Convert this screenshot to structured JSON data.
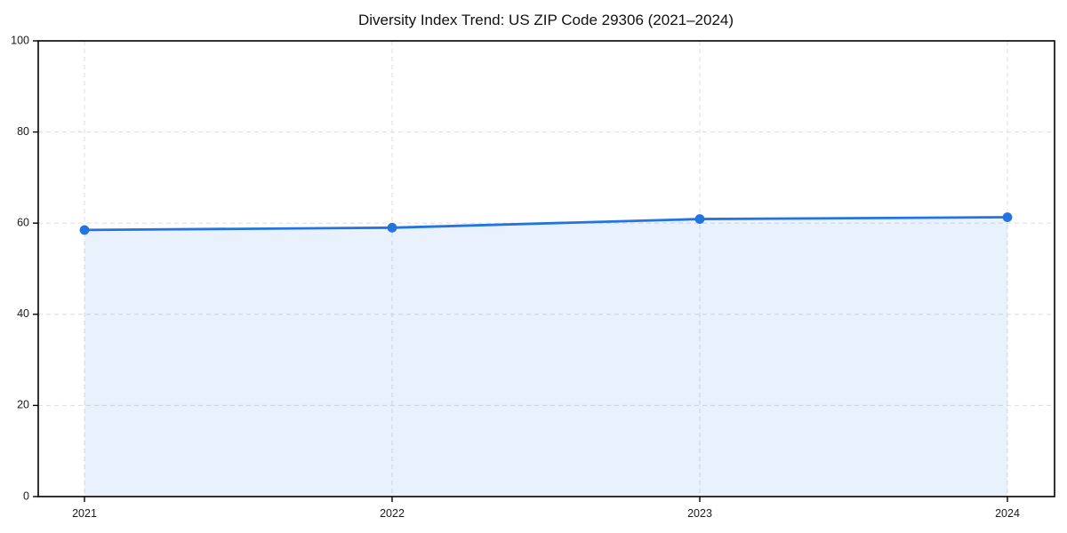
{
  "chart": {
    "title": "Diversity Index Trend: US ZIP Code 29306 (2021–2024)"
  },
  "chart_data": {
    "type": "area",
    "title": "Diversity Index Trend: US ZIP Code 29306 (2021–2024)",
    "x": [
      "2021",
      "2022",
      "2023",
      "2024"
    ],
    "values": [
      58.5,
      59.0,
      60.9,
      61.3
    ],
    "xlabel": "",
    "ylabel": "",
    "ylim": [
      0,
      100
    ],
    "yticks": [
      0,
      20,
      40,
      60,
      80,
      100
    ],
    "grid": true,
    "grid_style": "dashed",
    "legend": false,
    "marker": "circle",
    "colors": {
      "line": "#2275e0",
      "fill": "rgba(34,117,224,0.10)",
      "grid": "#e0e0e0",
      "spine": "#000000",
      "text": "#111111",
      "background": "#ffffff"
    }
  }
}
